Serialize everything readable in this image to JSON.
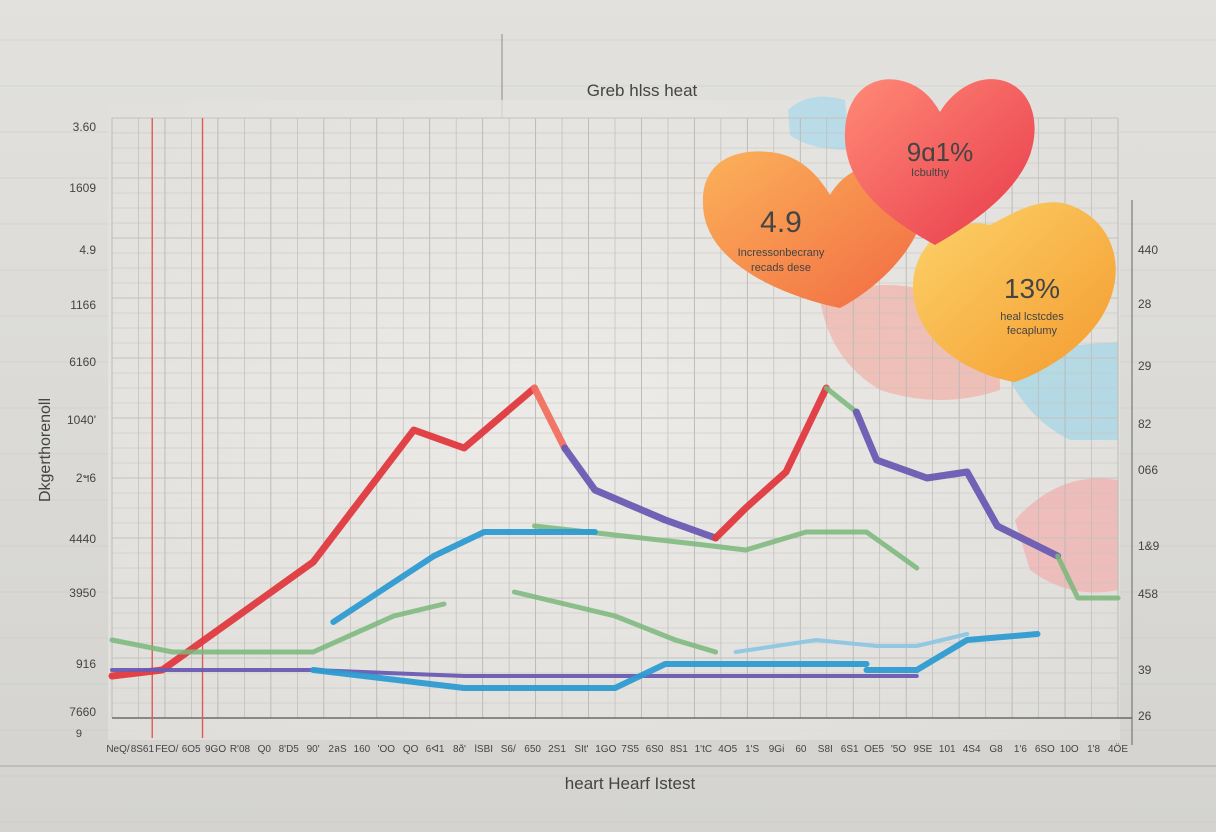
{
  "chart_data": {
    "type": "line",
    "title": "Greb hlss heat",
    "xlabel": "heart Hearf Istest",
    "ylabel": "Dkgerthorenoll",
    "y_ticks_left": [
      "3.60",
      "1609",
      "4.9",
      "1166",
      "6160",
      "1040'",
      "2ฯ6",
      "4440",
      "3950",
      "916",
      "7660"
    ],
    "y_ticks_left_extra": "9",
    "y_ticks_right": [
      "440",
      "28",
      "29",
      "82",
      "066",
      "1&9",
      "458",
      "39",
      "26"
    ],
    "x_ticks": [
      "NeQ/",
      "8S61",
      "FEO/",
      "6O5",
      "9GO",
      "R'08",
      "Q0",
      "8'D5",
      "90'",
      "2ลS",
      "160",
      "'OO",
      "QO",
      "6ᐊ1",
      "8ð'",
      "lSBI",
      "S6/",
      "650",
      "2S1",
      "SIt'",
      "1GO",
      "7S5",
      "6S0",
      "8S1",
      "1'tC",
      "4O5",
      "1'S",
      "9Gi",
      "60",
      "S8I",
      "6S1",
      "OE5",
      "'5O",
      "9SE",
      "101",
      "4S4",
      "G8",
      "1'6",
      "6SO",
      "10O",
      "1'8",
      "4ÖE"
    ],
    "grid": true,
    "ylim": [
      0,
      100
    ],
    "xlim": [
      0,
      100
    ],
    "colors": {
      "red": "#e0393f",
      "purple": "#6a5bb3",
      "blue": "#2e9bd2",
      "green": "#7ab77a",
      "lightblue": "#8ec6e2",
      "salmon": "#f07060"
    },
    "series": [
      {
        "key": "red",
        "x": [
          0,
          5,
          20,
          30,
          35,
          42
        ],
        "y": [
          7,
          8,
          26,
          48,
          45,
          55
        ]
      },
      {
        "key": "salmon",
        "x": [
          42,
          45
        ],
        "y": [
          55,
          45
        ]
      },
      {
        "key": "purple_top",
        "x": [
          45,
          48,
          55,
          60
        ],
        "y": [
          45,
          38,
          33,
          30
        ]
      },
      {
        "key": "red",
        "x": [
          60,
          63,
          67,
          71
        ],
        "y": [
          30,
          35,
          41,
          55
        ]
      },
      {
        "key": "green",
        "x": [
          71,
          74
        ],
        "y": [
          55,
          51
        ]
      },
      {
        "key": "purple_top",
        "x": [
          74,
          76,
          81,
          85,
          88,
          94
        ],
        "y": [
          51,
          43,
          40,
          41,
          32,
          27
        ]
      },
      {
        "key": "green",
        "x": [
          94,
          96,
          100
        ],
        "y": [
          27,
          20,
          20
        ]
      },
      {
        "key": "green",
        "x": [
          42,
          58,
          63,
          69,
          75,
          80
        ],
        "y": [
          32,
          29,
          28,
          31,
          31,
          25
        ]
      },
      {
        "key": "blue",
        "x": [
          22,
          32,
          37,
          42,
          48
        ],
        "y": [
          16,
          27,
          31,
          31,
          31
        ]
      },
      {
        "key": "green",
        "x": [
          0,
          6,
          20,
          28,
          33
        ],
        "y": [
          13,
          11,
          11,
          17,
          19
        ]
      },
      {
        "key": "purple",
        "x": [
          0,
          20,
          35,
          55,
          80
        ],
        "y": [
          8,
          8,
          7,
          7,
          7
        ]
      },
      {
        "key": "blue",
        "x": [
          20,
          35,
          50,
          55,
          62,
          70,
          75
        ],
        "y": [
          8,
          5,
          5,
          9,
          9,
          9,
          9
        ]
      },
      {
        "key": "blue",
        "x": [
          75,
          80,
          85,
          92
        ],
        "y": [
          8,
          8,
          13,
          14
        ]
      },
      {
        "key": "lightblue",
        "x": [
          62,
          66,
          70,
          76,
          80,
          85
        ],
        "y": [
          11,
          12,
          13,
          12,
          12,
          14
        ]
      },
      {
        "key": "green",
        "x": [
          40,
          50,
          56,
          60
        ],
        "y": [
          21,
          17,
          13,
          11
        ]
      }
    ],
    "annotations": [
      {
        "key": "orange",
        "value": "4.9",
        "label": "Incressonbecrany\nrecads dese",
        "color": "#f59a4a"
      },
      {
        "key": "red",
        "value": "9ɑ1%",
        "label": "Icbulthy",
        "color": "#ef5a54"
      },
      {
        "key": "yellow",
        "value": "13%",
        "label": "heal lcstcdes\nfecaplumy",
        "color": "#f7b93a"
      }
    ]
  }
}
